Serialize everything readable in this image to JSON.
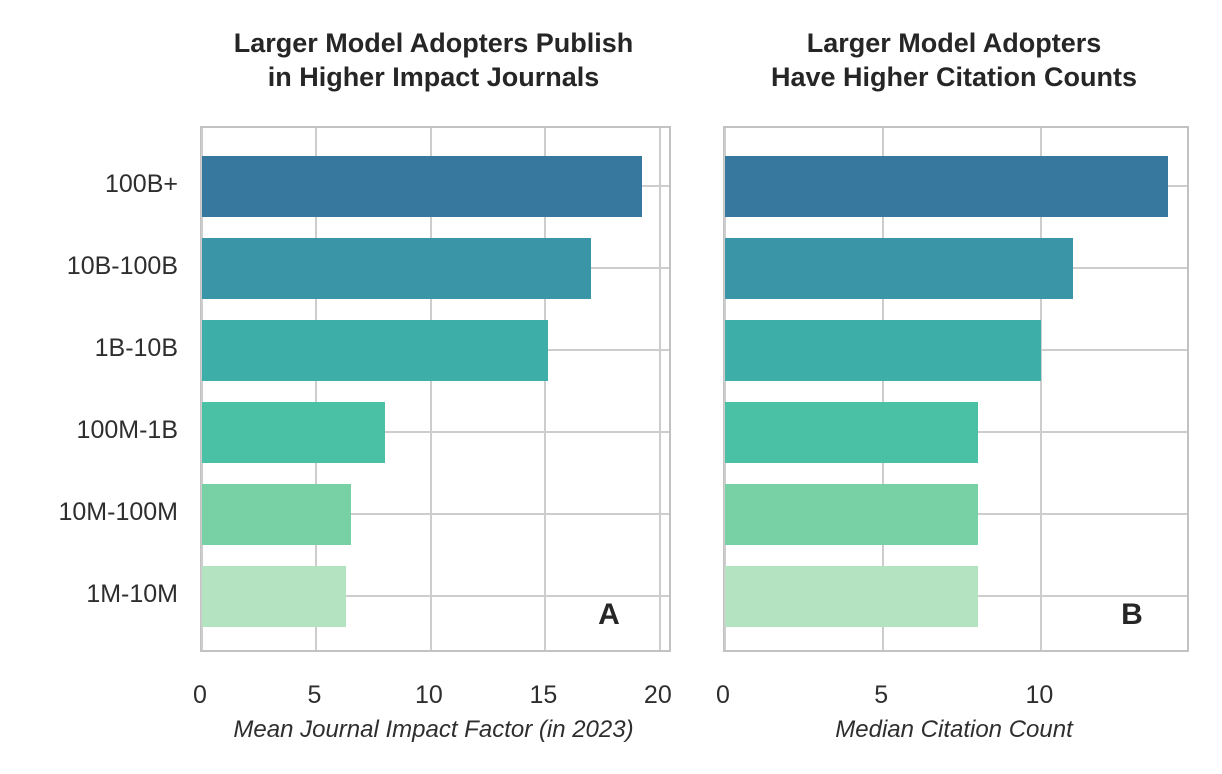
{
  "figure": {
    "background": "#ffffff"
  },
  "chart_data": [
    {
      "type": "bar",
      "orientation": "horizontal",
      "panel_label": "A",
      "title": "Larger Model Adopters Publish in Higher Impact Journals",
      "title_lines": [
        "Larger Model Adopters Publish",
        "in Higher Impact Journals"
      ],
      "categories": [
        "100B+",
        "10B-100B",
        "1B-10B",
        "100M-1B",
        "10M-100M",
        "1M-10M"
      ],
      "values": [
        19.2,
        17.0,
        15.1,
        8.0,
        6.5,
        6.3
      ],
      "xlabel": "Mean Journal Impact Factor (in 2023)",
      "xticks": [
        0,
        5,
        10,
        15,
        20
      ],
      "xlim": [
        0,
        20.4
      ],
      "grid": true,
      "legend": null
    },
    {
      "type": "bar",
      "orientation": "horizontal",
      "panel_label": "B",
      "title": "Larger Model Adopters Have Higher Citation Counts",
      "title_lines": [
        "Larger Model Adopters",
        "Have Higher Citation Counts"
      ],
      "categories": [
        "100B+",
        "10B-100B",
        "1B-10B",
        "100M-1B",
        "10M-100M",
        "1M-10M"
      ],
      "values": [
        14.0,
        11.0,
        10.0,
        8.0,
        8.0,
        8.0
      ],
      "xlabel": "Median Citation Count",
      "xticks": [
        0,
        5,
        10
      ],
      "xlim": [
        0,
        14.6
      ],
      "grid": true,
      "legend": null
    }
  ],
  "colors": {
    "bars": [
      "#36789e",
      "#3a96a7",
      "#3eaea9",
      "#4ac0a5",
      "#78d1a4",
      "#b4e3c2"
    ],
    "grid": "#cdcdcd",
    "border": "#c2c2c2",
    "title_text": "#262626",
    "label_text": "#2e2e2e"
  }
}
